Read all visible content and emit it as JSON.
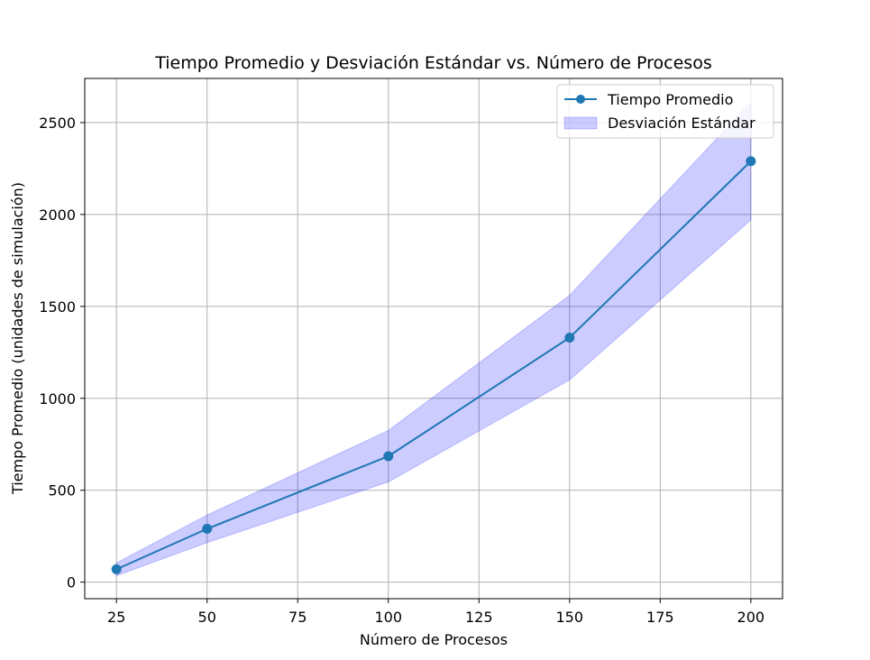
{
  "chart_data": {
    "type": "line",
    "title": "Tiempo Promedio y Desviación Estándar vs. Número de Procesos",
    "xlabel": "Número de Procesos",
    "ylabel": "Tiempo Promedio (unidades de simulación)",
    "x": [
      25,
      50,
      100,
      150,
      200
    ],
    "series": [
      {
        "name": "Tiempo Promedio",
        "values": [
          70,
          290,
          685,
          1330,
          2290
        ],
        "color": "#1f77b4",
        "marker": "circle"
      }
    ],
    "band": {
      "name": "Desviación Estándar",
      "lower": [
        35,
        215,
        545,
        1100,
        1970
      ],
      "upper": [
        105,
        365,
        825,
        1560,
        2610
      ],
      "color": "#0000ff",
      "alpha": 0.2
    },
    "xlim": [
      16.25,
      208.75
    ],
    "ylim": [
      -90,
      2740
    ],
    "xticks": [
      25,
      50,
      75,
      100,
      125,
      150,
      175,
      200
    ],
    "yticks": [
      0,
      500,
      1000,
      1500,
      2000,
      2500
    ],
    "grid": true,
    "legend_position": "upper right"
  }
}
